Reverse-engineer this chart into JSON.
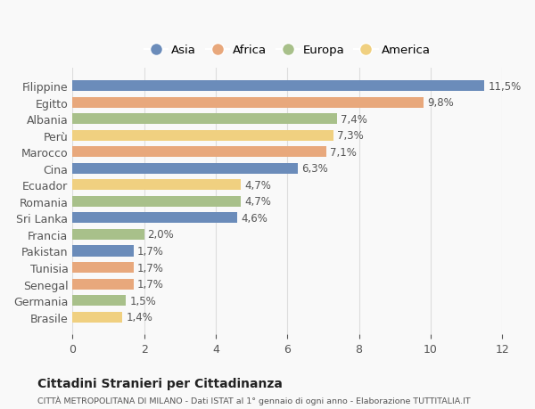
{
  "countries": [
    "Filippine",
    "Egitto",
    "Albania",
    "Perù",
    "Marocco",
    "Cina",
    "Ecuador",
    "Romania",
    "Sri Lanka",
    "Francia",
    "Pakistan",
    "Tunisia",
    "Senegal",
    "Germania",
    "Brasile"
  ],
  "values": [
    11.5,
    9.8,
    7.4,
    7.3,
    7.1,
    6.3,
    4.7,
    4.7,
    4.6,
    2.0,
    1.7,
    1.7,
    1.7,
    1.5,
    1.4
  ],
  "labels": [
    "11,5%",
    "9,8%",
    "7,4%",
    "7,3%",
    "7,1%",
    "6,3%",
    "4,7%",
    "4,7%",
    "4,6%",
    "2,0%",
    "1,7%",
    "1,7%",
    "1,7%",
    "1,5%",
    "1,4%"
  ],
  "continents": [
    "Asia",
    "Africa",
    "Europa",
    "America",
    "Africa",
    "Asia",
    "America",
    "Europa",
    "Asia",
    "Europa",
    "Asia",
    "Africa",
    "Africa",
    "Europa",
    "America"
  ],
  "colors": {
    "Asia": "#6b8cba",
    "Africa": "#e8a87c",
    "Europa": "#a8c08a",
    "America": "#f0d080"
  },
  "legend_order": [
    "Asia",
    "Africa",
    "Europa",
    "America"
  ],
  "title": "Cittadini Stranieri per Cittadinanza",
  "subtitle": "CITTÀ METROPOLITANA DI MILANO - Dati ISTAT al 1° gennaio di ogni anno - Elaborazione TUTTITALIA.IT",
  "xlim": [
    0,
    12
  ],
  "xticks": [
    0,
    2,
    4,
    6,
    8,
    10,
    12
  ],
  "background_color": "#f9f9f9",
  "bar_height": 0.65,
  "grid_color": "#dddddd"
}
